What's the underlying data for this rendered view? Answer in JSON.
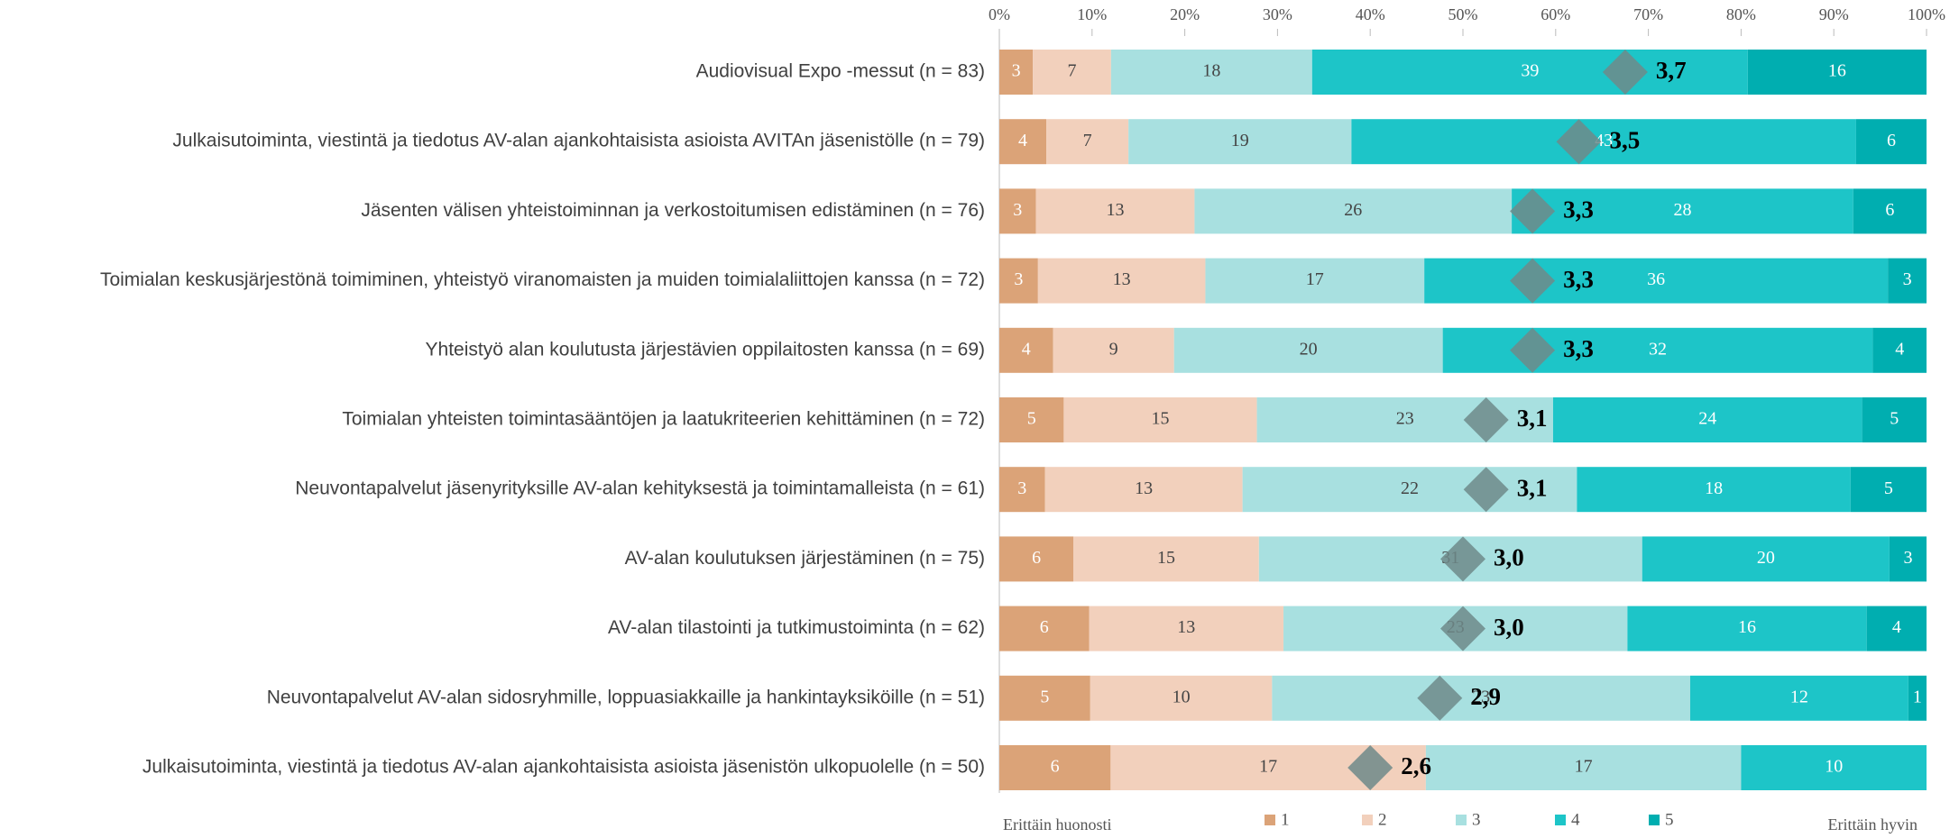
{
  "chart_data": {
    "type": "bar",
    "orientation": "horizontal",
    "stacked": true,
    "percent": true,
    "categories": [
      "Audiovisual Expo -messut (n = 83)",
      "Julkaisutoiminta, viestintä ja tiedotus AV-alan ajankohtaisista asioista AVITAn jäsenistölle (n = 79)",
      "Jäsenten välisen yhteistoiminnan ja verkostoitumisen edistäminen (n = 76)",
      "Toimialan keskusjärjestönä toimiminen, yhteistyö viranomaisten ja muiden toimialaliittojen kanssa  (n = 72)",
      "Yhteistyö alan koulutusta järjestävien oppilaitosten kanssa (n = 69)",
      "Toimialan yhteisten toimintasääntöjen ja laatukriteerien kehittäminen (n = 72)",
      "Neuvontapalvelut jäsenyrityksille AV-alan kehityksestä ja toimintamalleista (n = 61)",
      "AV-alan koulutuksen järjestäminen (n = 75)",
      "AV-alan tilastointi ja tutkimustoiminta (n = 62)",
      "Neuvontapalvelut AV-alan sidosryhmille, loppuasiakkaille ja hankintayksiköille (n = 51)",
      "Julkaisutoiminta, viestintä ja tiedotus AV-alan ajankohtaisista asioista jäsenistön ulkopuolelle (n = 50)"
    ],
    "series": [
      {
        "name": "1",
        "color": "#dba378",
        "values": [
          3,
          4,
          3,
          3,
          4,
          5,
          3,
          6,
          6,
          5,
          6
        ]
      },
      {
        "name": "2",
        "color": "#f2d0bc",
        "values": [
          7,
          7,
          13,
          13,
          9,
          15,
          13,
          15,
          13,
          10,
          17
        ]
      },
      {
        "name": "3",
        "color": "#a8e0e0",
        "values": [
          18,
          19,
          26,
          17,
          20,
          23,
          22,
          31,
          23,
          23,
          17
        ]
      },
      {
        "name": "4",
        "color": "#1dc5c8",
        "values": [
          39,
          43,
          28,
          36,
          32,
          24,
          18,
          20,
          16,
          12,
          10
        ]
      },
      {
        "name": "5",
        "color": "#00aeb0",
        "values": [
          16,
          6,
          6,
          3,
          4,
          5,
          5,
          3,
          4,
          1,
          0
        ]
      }
    ],
    "means": {
      "color": "#6e8a8a",
      "scale": [
        1,
        5
      ],
      "values": [
        3.7,
        3.5,
        3.3,
        3.3,
        3.3,
        3.1,
        3.1,
        3.0,
        3.0,
        2.9,
        2.6
      ],
      "value_labels": [
        "3,7",
        "3,5",
        "3,3",
        "3,3",
        "3,3",
        "3,1",
        "3,1",
        "3,0",
        "3,0",
        "2,9",
        "2,6"
      ]
    },
    "xlim": [
      0,
      100
    ],
    "xticks": [
      {
        "value": 0,
        "label": "0%"
      },
      {
        "value": 10,
        "label": "10%"
      },
      {
        "value": 20,
        "label": "20%"
      },
      {
        "value": 30,
        "label": "30%"
      },
      {
        "value": 40,
        "label": "40%"
      },
      {
        "value": 50,
        "label": "50%"
      },
      {
        "value": 60,
        "label": "60%"
      },
      {
        "value": 70,
        "label": "70%"
      },
      {
        "value": 80,
        "label": "80%"
      },
      {
        "value": 90,
        "label": "90%"
      },
      {
        "value": 100,
        "label": "100%"
      }
    ],
    "low_label": "Erittäin huonosti",
    "high_label": "Erittäin hyvin"
  }
}
